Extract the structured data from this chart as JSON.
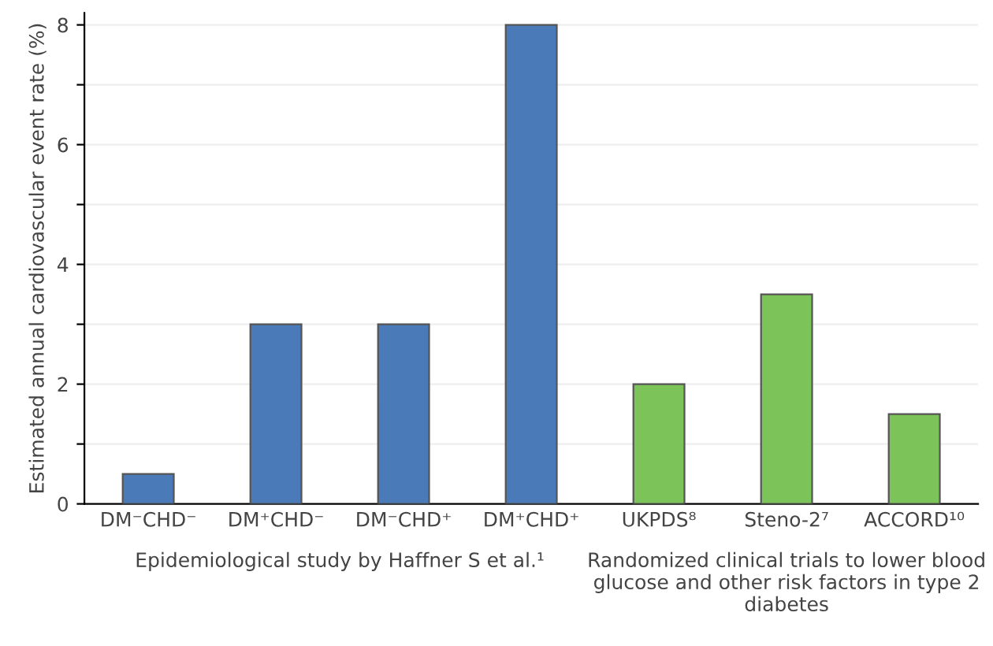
{
  "chart_data": {
    "type": "bar",
    "ylabel": "Estimated annual cardiovascular event rate (%)",
    "categories": [
      "DM⁻CHD⁻",
      "DM⁺CHD⁻",
      "DM⁻CHD⁺",
      "DM⁺CHD⁺",
      "UKPDS⁸",
      "Steno-2⁷",
      "ACCORD¹⁰"
    ],
    "values": [
      0.5,
      3,
      3,
      8,
      2,
      3.5,
      1.5
    ],
    "colors": [
      "#4a7ab8",
      "#4a7ab8",
      "#4a7ab8",
      "#4a7ab8",
      "#7cc35a",
      "#7cc35a",
      "#7cc35a"
    ],
    "ylim": [
      0,
      8.2
    ],
    "yticks": [
      0,
      {
        "value": 1,
        "label": null
      },
      2,
      {
        "value": 3,
        "label": null
      },
      4,
      {
        "value": 5,
        "label": null
      },
      6,
      {
        "value": 7,
        "label": null
      },
      8
    ],
    "grid": "y",
    "annotations": [
      "Epidemiological study by Haffner S et al.¹",
      "Randomized clinical trials to lower blood glucose and other risk factors in type 2 diabetes"
    ]
  }
}
